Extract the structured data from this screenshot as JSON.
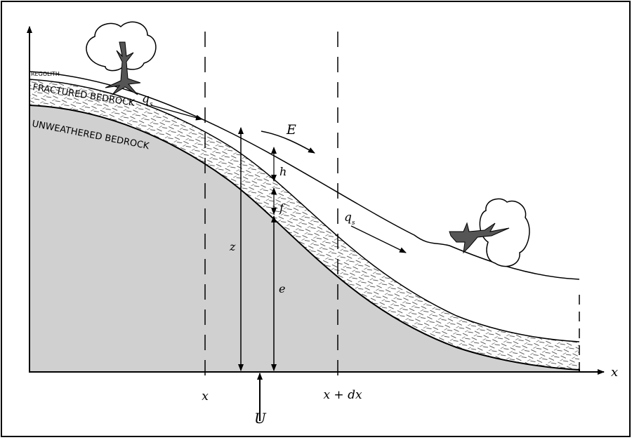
{
  "layers": {
    "regolith": "REGOLITH",
    "fractured_bedrock": "FRACTURED BEDROCK",
    "unweathered_bedrock": "UNWEATHERED BEDROCK"
  },
  "symbols": {
    "flux_upper": {
      "symbol": "q",
      "subscript": "s"
    },
    "flux_lower": {
      "symbol": "q",
      "subscript": "s"
    },
    "erosion": "E",
    "regolith_thickness": "h",
    "fractured_thickness": "f",
    "elevation": "z",
    "bedrock_elevation": "e",
    "uplift": "U"
  },
  "axis": {
    "x_label": "x",
    "position_left": "x",
    "position_right": "x + dx"
  }
}
